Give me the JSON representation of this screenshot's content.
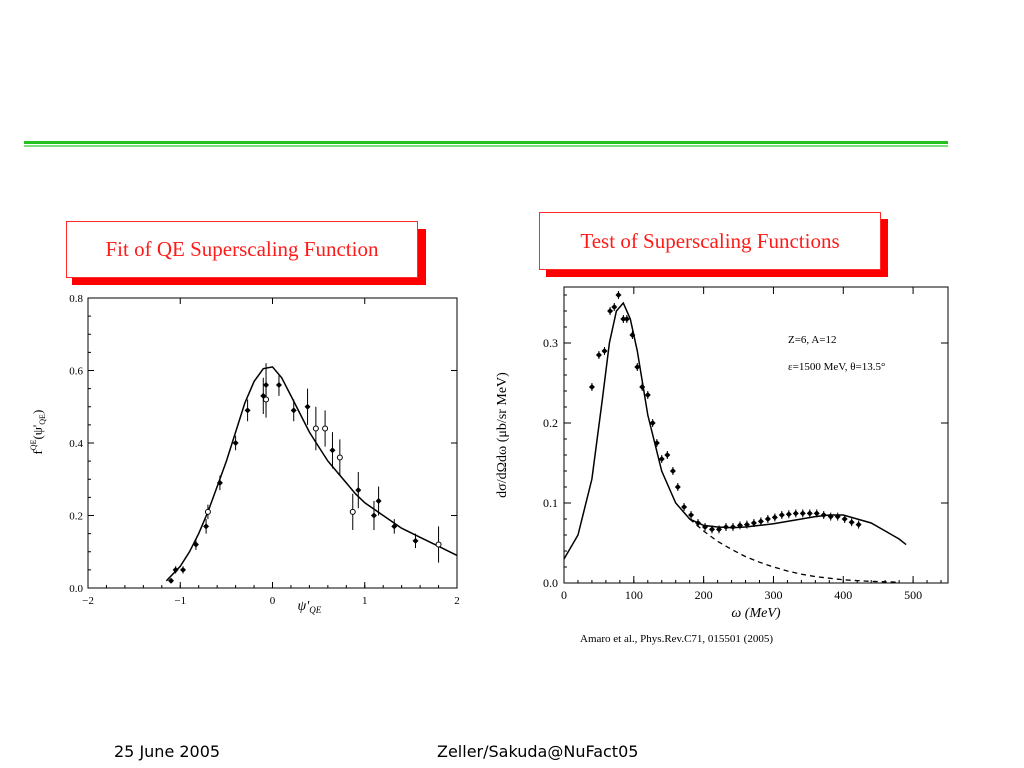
{
  "slide": {
    "footer_date": "25 June 2005",
    "footer_author": "Zeller/Sakuda@NuFact05",
    "accent_color": "#21c21f",
    "title_color": "#ff1a1a"
  },
  "left": {
    "title": "Fit of QE Superscaling Function",
    "ylabel": "f",
    "ylabel_sup": "QE",
    "ylabel_arg": "(ψ'",
    "ylabel_sub": "QE",
    "ylabel_close": ")",
    "xlabel": "ψ'",
    "xlabel_sub": "QE"
  },
  "right": {
    "title": "Test of Superscaling Functions",
    "ylabel": "dσ/dΩdω (μb/sr MeV)",
    "xlabel": "ω (MeV)",
    "annotation1": "Z=6, A=12",
    "annotation2": "ε=1500 MeV, θ=13.5°",
    "citation": "Amaro et al., Phys.Rev.C71, 015501 (2005)"
  },
  "chart_data": [
    {
      "type": "scatter",
      "title": "Fit of QE Superscaling Function",
      "xlim": [
        -2,
        2
      ],
      "ylim": [
        0,
        0.8
      ],
      "xticks": [
        -2,
        -1,
        0,
        1,
        2
      ],
      "yticks": [
        0.0,
        0.2,
        0.4,
        0.6,
        0.8
      ],
      "xticklabels": [
        "−2",
        "−1",
        "0",
        "1",
        "2"
      ],
      "yticklabels": [
        "0.0",
        "0.2",
        "0.4",
        "0.6",
        "0.8"
      ],
      "fit_curve": {
        "x": [
          -1.15,
          -1.0,
          -0.9,
          -0.8,
          -0.7,
          -0.6,
          -0.5,
          -0.4,
          -0.3,
          -0.2,
          -0.1,
          0.0,
          0.1,
          0.2,
          0.3,
          0.4,
          0.5,
          0.6,
          0.7,
          0.8,
          0.9,
          1.0,
          1.2,
          1.4,
          1.6,
          1.8,
          2.0
        ],
        "y": [
          0.02,
          0.06,
          0.1,
          0.15,
          0.21,
          0.28,
          0.35,
          0.43,
          0.51,
          0.57,
          0.605,
          0.61,
          0.58,
          0.53,
          0.48,
          0.43,
          0.39,
          0.35,
          0.32,
          0.29,
          0.26,
          0.235,
          0.2,
          0.165,
          0.14,
          0.115,
          0.09
        ]
      },
      "points_filled": [
        {
          "x": -1.1,
          "y": 0.02,
          "err": 0.0
        },
        {
          "x": -1.05,
          "y": 0.05,
          "err": 0.01
        },
        {
          "x": -0.97,
          "y": 0.05,
          "err": 0.01
        },
        {
          "x": -0.83,
          "y": 0.12,
          "err": 0.015
        },
        {
          "x": -0.72,
          "y": 0.17,
          "err": 0.02
        },
        {
          "x": -0.57,
          "y": 0.29,
          "err": 0.02
        },
        {
          "x": -0.4,
          "y": 0.4,
          "err": 0.02
        },
        {
          "x": -0.27,
          "y": 0.49,
          "err": 0.03
        },
        {
          "x": -0.1,
          "y": 0.53,
          "err": 0.05
        },
        {
          "x": -0.07,
          "y": 0.56,
          "err": 0.06
        },
        {
          "x": 0.07,
          "y": 0.56,
          "err": 0.03
        },
        {
          "x": 0.23,
          "y": 0.49,
          "err": 0.03
        },
        {
          "x": 0.38,
          "y": 0.5,
          "err": 0.05
        },
        {
          "x": 0.65,
          "y": 0.38,
          "err": 0.05
        },
        {
          "x": 0.93,
          "y": 0.27,
          "err": 0.05
        },
        {
          "x": 1.1,
          "y": 0.2,
          "err": 0.04
        },
        {
          "x": 1.15,
          "y": 0.24,
          "err": 0.04
        },
        {
          "x": 1.32,
          "y": 0.17,
          "err": 0.02
        },
        {
          "x": 1.55,
          "y": 0.13,
          "err": 0.02
        }
      ],
      "points_open": [
        {
          "x": -0.7,
          "y": 0.21,
          "err": 0.02
        },
        {
          "x": -0.07,
          "y": 0.52,
          "err": 0.05
        },
        {
          "x": 0.47,
          "y": 0.44,
          "err": 0.06
        },
        {
          "x": 0.57,
          "y": 0.44,
          "err": 0.05
        },
        {
          "x": 0.73,
          "y": 0.36,
          "err": 0.05
        },
        {
          "x": 0.87,
          "y": 0.21,
          "err": 0.05
        },
        {
          "x": 1.8,
          "y": 0.12,
          "err": 0.05
        }
      ]
    },
    {
      "type": "scatter",
      "title": "Test of Superscaling Functions",
      "xlim": [
        0,
        550
      ],
      "ylim": [
        0,
        0.37
      ],
      "xticks": [
        0,
        100,
        200,
        300,
        400,
        500
      ],
      "yticks": [
        0.0,
        0.1,
        0.2,
        0.3
      ],
      "xticklabels": [
        "0",
        "100",
        "200",
        "300",
        "400",
        "500"
      ],
      "yticklabels": [
        "0.0",
        "0.1",
        "0.2",
        "0.3"
      ],
      "data_points": {
        "x": [
          40,
          50,
          58,
          66,
          72,
          78,
          85,
          90,
          98,
          105,
          112,
          120,
          127,
          133,
          140,
          148,
          156,
          163,
          172,
          182,
          192,
          202,
          212,
          222,
          232,
          242,
          252,
          262,
          272,
          282,
          292,
          302,
          312,
          322,
          332,
          342,
          352,
          362,
          372,
          382,
          392,
          402,
          412,
          422
        ],
        "y": [
          0.245,
          0.285,
          0.29,
          0.34,
          0.345,
          0.36,
          0.33,
          0.33,
          0.31,
          0.27,
          0.245,
          0.235,
          0.2,
          0.175,
          0.155,
          0.16,
          0.14,
          0.12,
          0.095,
          0.085,
          0.075,
          0.07,
          0.067,
          0.067,
          0.07,
          0.07,
          0.072,
          0.073,
          0.075,
          0.077,
          0.08,
          0.082,
          0.085,
          0.086,
          0.087,
          0.087,
          0.087,
          0.087,
          0.085,
          0.083,
          0.083,
          0.08,
          0.076,
          0.073
        ]
      },
      "solid_curve": {
        "x": [
          0,
          20,
          40,
          55,
          65,
          75,
          85,
          95,
          105,
          120,
          140,
          160,
          180,
          200,
          220,
          240,
          260,
          280,
          300,
          320,
          340,
          360,
          380,
          400,
          420,
          440,
          460,
          480,
          490
        ],
        "y": [
          0.03,
          0.06,
          0.13,
          0.23,
          0.3,
          0.34,
          0.35,
          0.33,
          0.29,
          0.21,
          0.14,
          0.1,
          0.08,
          0.072,
          0.07,
          0.069,
          0.07,
          0.072,
          0.074,
          0.077,
          0.08,
          0.083,
          0.085,
          0.085,
          0.08,
          0.075,
          0.065,
          0.055,
          0.048
        ]
      },
      "dashed_curve": {
        "x": [
          180,
          200,
          220,
          240,
          260,
          280,
          300,
          320,
          340,
          360,
          380,
          400,
          420,
          440,
          460,
          480
        ],
        "y": [
          0.08,
          0.065,
          0.052,
          0.042,
          0.033,
          0.026,
          0.02,
          0.015,
          0.011,
          0.008,
          0.006,
          0.004,
          0.003,
          0.002,
          0.0015,
          0.001
        ]
      }
    }
  ]
}
